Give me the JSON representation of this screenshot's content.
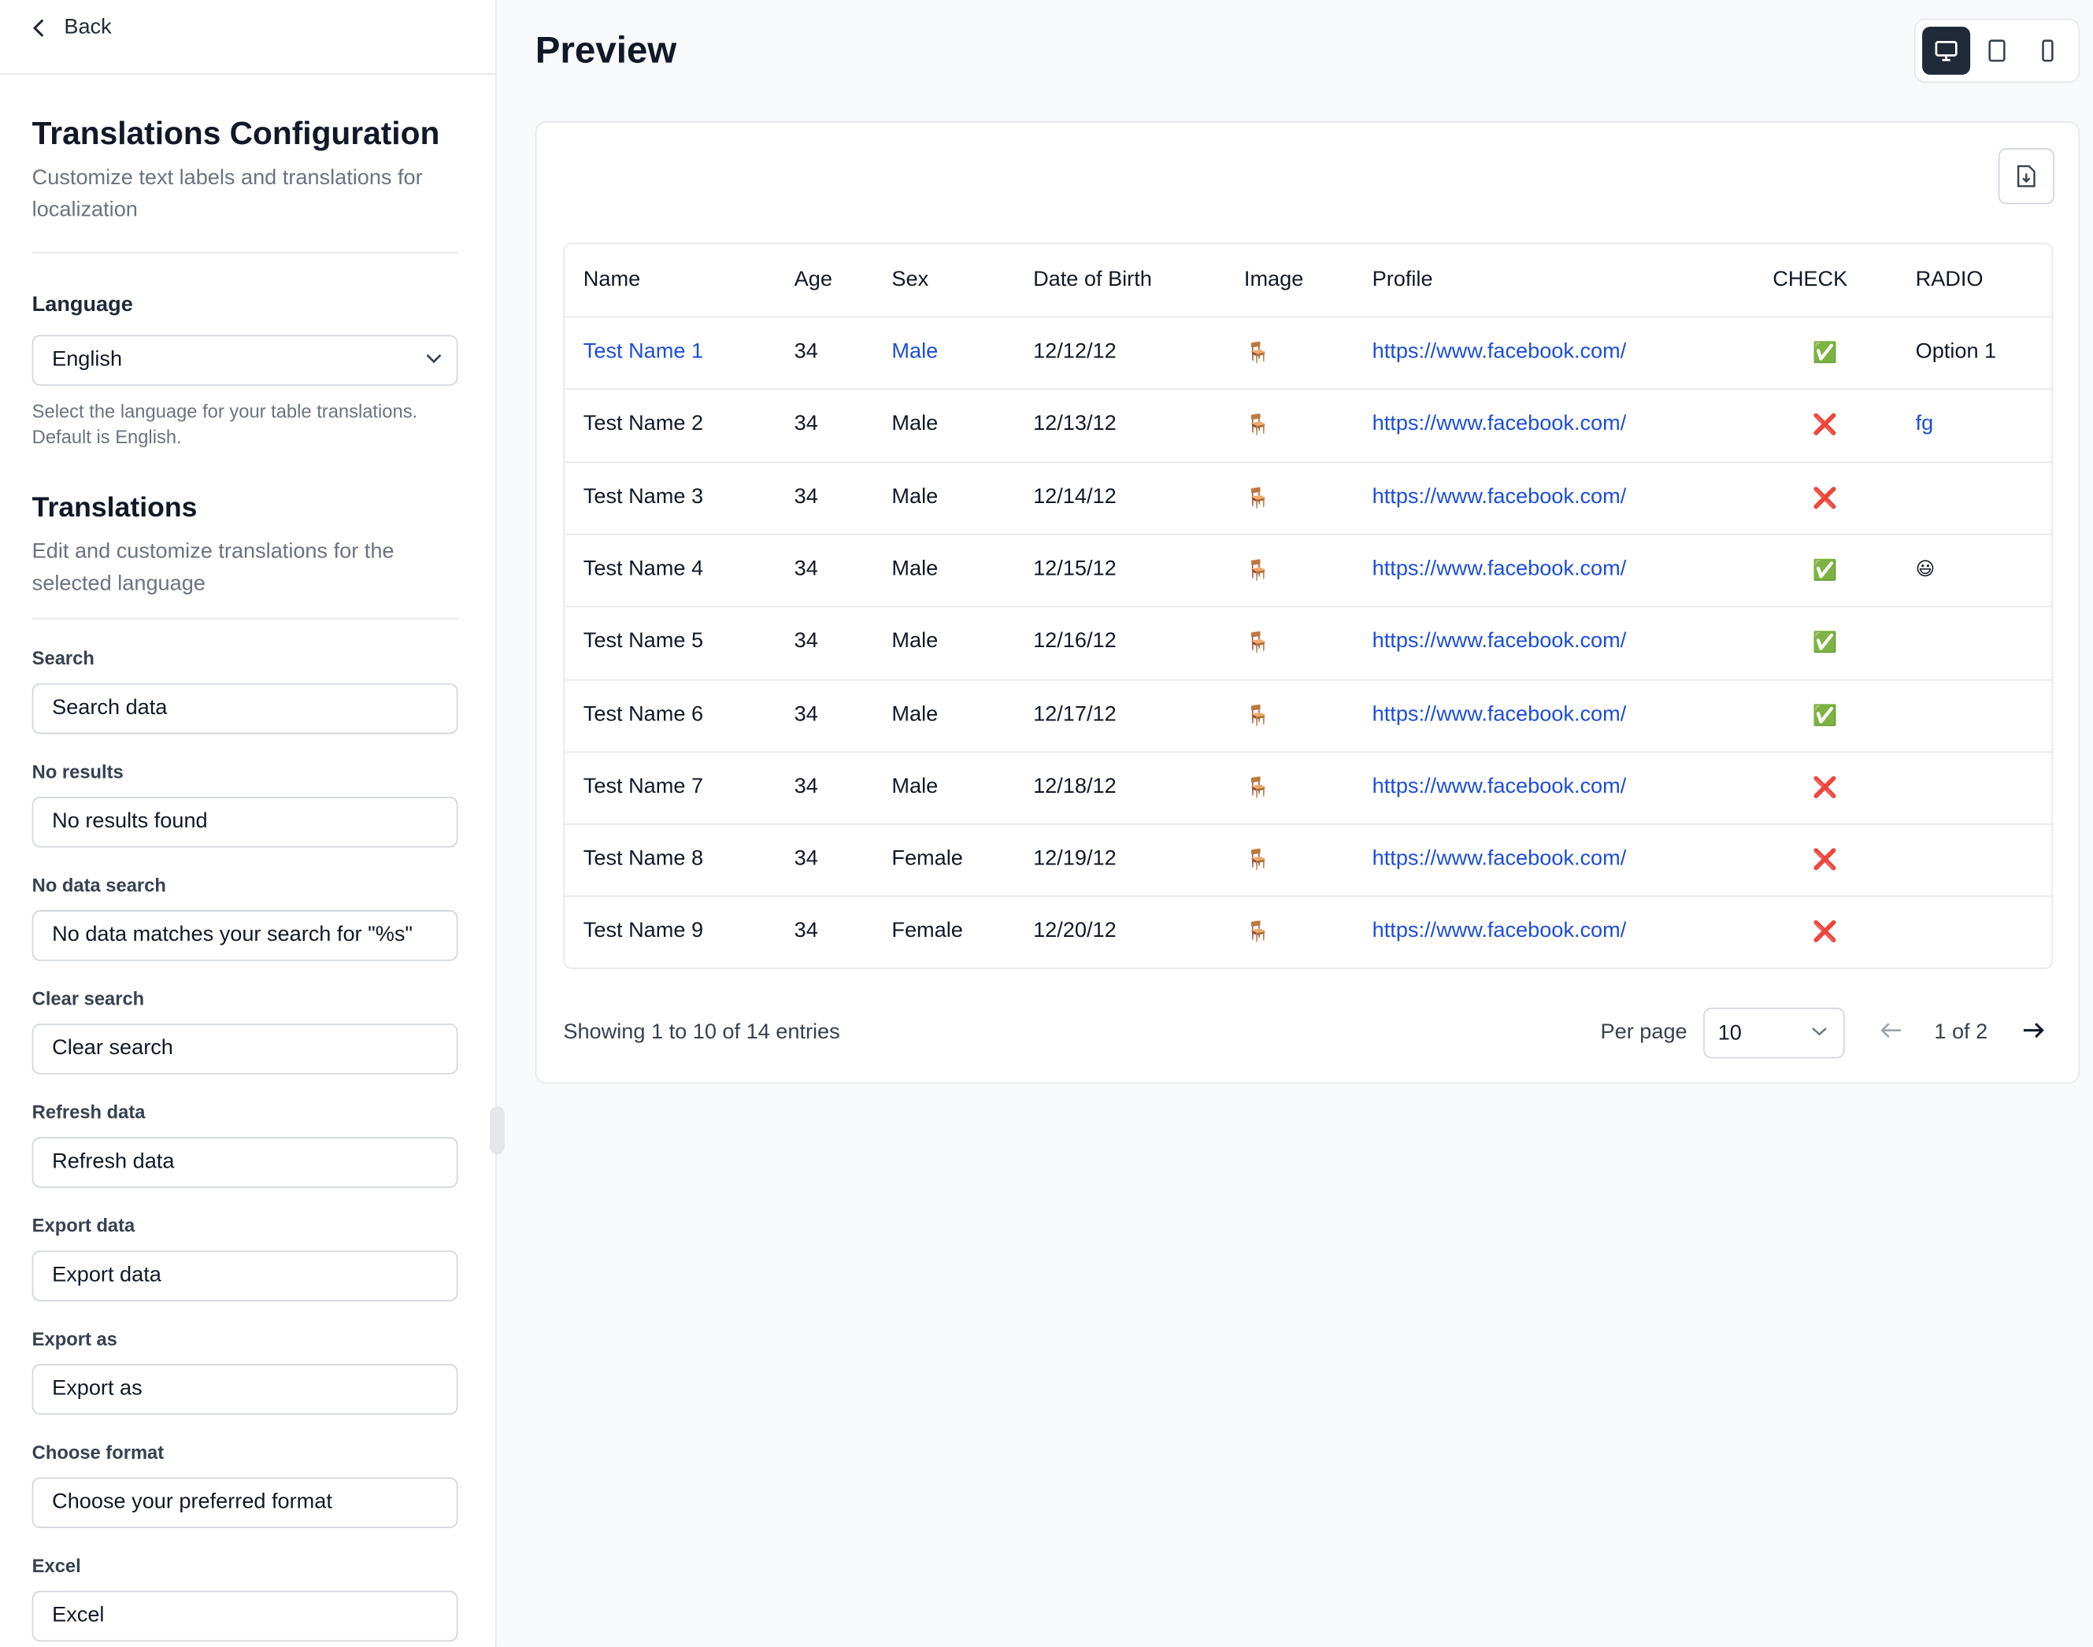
{
  "sidebar": {
    "back": "Back",
    "title": "Translations Configuration",
    "subtitle": "Customize text labels and translations for localization",
    "language_label": "Language",
    "language_value": "English",
    "language_help": "Select the language for your table translations. Default is English.",
    "translations_title": "Translations",
    "translations_subtitle": "Edit and customize translations for the selected language",
    "fields": [
      {
        "label": "Search",
        "value": "Search data"
      },
      {
        "label": "No results",
        "value": "No results found"
      },
      {
        "label": "No data search",
        "value": "No data matches your search for \"%s\""
      },
      {
        "label": "Clear search",
        "value": "Clear search"
      },
      {
        "label": "Refresh data",
        "value": "Refresh data"
      },
      {
        "label": "Export data",
        "value": "Export data"
      },
      {
        "label": "Export as",
        "value": "Export as"
      },
      {
        "label": "Choose format",
        "value": "Choose your preferred format"
      },
      {
        "label": "Excel",
        "value": "Excel"
      }
    ]
  },
  "preview": {
    "title": "Preview",
    "table": {
      "headers": [
        "Name",
        "Age",
        "Sex",
        "Date of Birth",
        "Image",
        "Profile",
        "CHECK",
        "RADIO"
      ],
      "rows": [
        {
          "name": "Test Name 1",
          "age": "34",
          "sex": "Male",
          "dob": "12/12/12",
          "image": "🪑",
          "profile": "https://www.facebook.com/",
          "check": "✅",
          "radio": "Option 1"
        },
        {
          "name": "Test Name 2",
          "age": "34",
          "sex": "Male",
          "dob": "12/13/12",
          "image": "🪑",
          "profile": "https://www.facebook.com/",
          "check": "❌",
          "radio": "fg"
        },
        {
          "name": "Test Name 3",
          "age": "34",
          "sex": "Male",
          "dob": "12/14/12",
          "image": "🪑",
          "profile": "https://www.facebook.com/",
          "check": "❌"
        },
        {
          "name": "Test Name 4",
          "age": "34",
          "sex": "Male",
          "dob": "12/15/12",
          "image": "🪑",
          "profile": "https://www.facebook.com/",
          "check": "✅",
          "radio": "😃"
        },
        {
          "name": "Test Name 5",
          "age": "34",
          "sex": "Male",
          "dob": "12/16/12",
          "image": "🪑",
          "profile": "https://www.facebook.com/",
          "check": "✅"
        },
        {
          "name": "Test Name 6",
          "age": "34",
          "sex": "Male",
          "dob": "12/17/12",
          "image": "🪑",
          "profile": "https://www.facebook.com/",
          "check": "✅"
        },
        {
          "name": "Test Name 7",
          "age": "34",
          "sex": "Male",
          "dob": "12/18/12",
          "image": "🪑",
          "profile": "https://www.facebook.com/",
          "check": "❌"
        },
        {
          "name": "Test Name 8",
          "age": "34",
          "sex": "Female",
          "dob": "12/19/12",
          "image": "🪑",
          "profile": "https://www.facebook.com/",
          "check": "❌"
        },
        {
          "name": "Test Name 9",
          "age": "34",
          "sex": "Female",
          "dob": "12/20/12",
          "image": "🪑",
          "profile": "https://www.facebook.com/",
          "check": "❌"
        }
      ]
    },
    "footer": {
      "showing": "Showing 1 to 10 of 14 entries",
      "per_page_label": "Per page",
      "per_page_value": "10",
      "page_info": "1 of 2"
    }
  }
}
